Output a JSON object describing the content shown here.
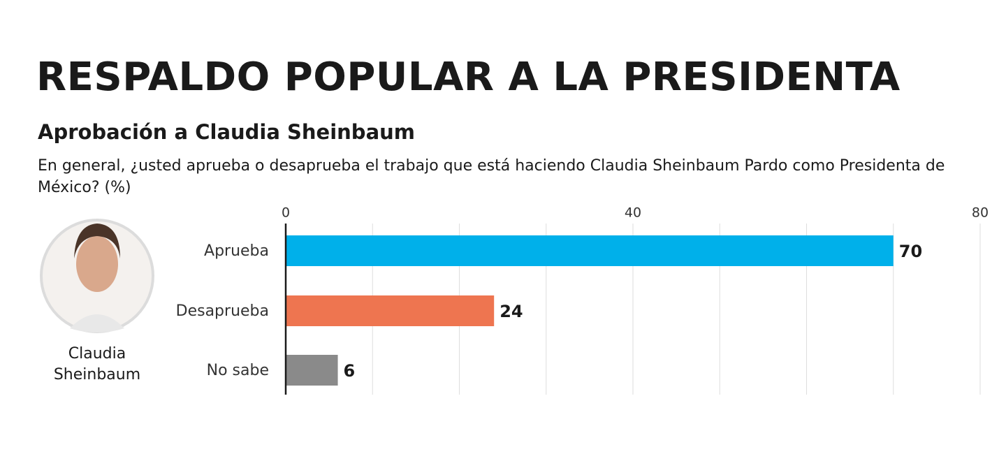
{
  "chart_data": {
    "type": "barh",
    "title": "RESPALDO POPULAR A LA PRESIDENTA",
    "subtitle": "Aprobación a Claudia Sheinbaum",
    "question": "En general, ¿usted aprueba o desaprueba el trabajo que está haciendo Claudia Sheinbaum Pardo como Presidenta de México? (%)",
    "person": "Claudia Sheinbaum",
    "categories": [
      "Aprueba",
      "Desaprueba",
      "No sabe"
    ],
    "values": [
      70,
      24,
      6
    ],
    "colors": [
      "#00b0ea",
      "#ee7550",
      "#8a8a8a"
    ],
    "xlim": [
      0,
      80
    ],
    "xticks": [
      0,
      40,
      80
    ],
    "minor_xticks": [
      10,
      20,
      30,
      50,
      60,
      70
    ],
    "grid": true
  }
}
